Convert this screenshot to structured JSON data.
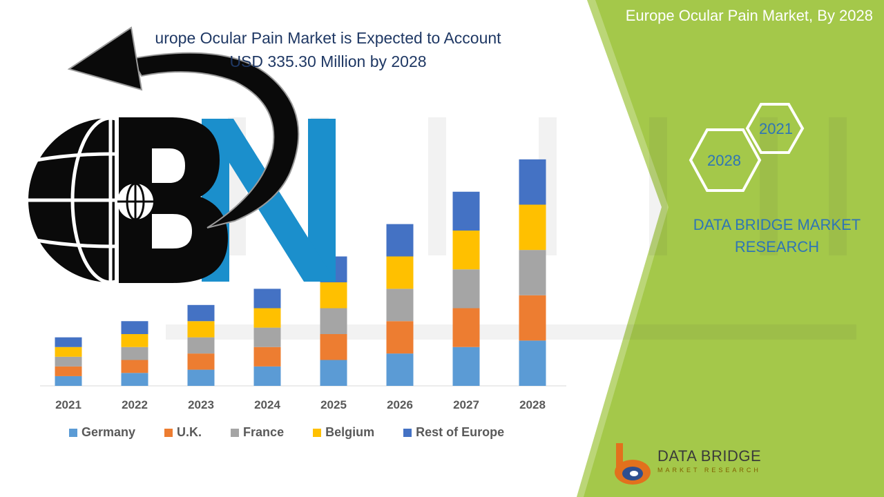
{
  "header": {
    "right_title": "Europe Ocular Pain Market, By 2028",
    "headline_line1": "urope Ocular Pain Market is Expected to Account",
    "headline_line2": "USD 335.30 Million by 2028"
  },
  "brand": {
    "name": "DATA BRIDGE MARKET RESEARCH",
    "hex_labels": [
      "2021",
      "2028"
    ],
    "footer_name": "DATA BRIDGE",
    "footer_sub": "MARKET RESEARCH"
  },
  "colors": {
    "green_panel": "#a4c84a",
    "text_blue": "#2e75b6",
    "headline": "#1f3864"
  },
  "chart_data": {
    "type": "bar",
    "stacked": true,
    "categories": [
      "2021",
      "2022",
      "2023",
      "2024",
      "2025",
      "2026",
      "2027",
      "2028"
    ],
    "series": [
      {
        "name": "Germany",
        "color": "#5b9bd5",
        "values": [
          3.0,
          4.0,
          5.0,
          6.0,
          8.0,
          10.0,
          12.0,
          14.0
        ]
      },
      {
        "name": "U.K.",
        "color": "#ed7d31",
        "values": [
          3.0,
          4.0,
          5.0,
          6.0,
          8.0,
          10.0,
          12.0,
          14.0
        ]
      },
      {
        "name": "France",
        "color": "#a5a5a5",
        "values": [
          3.0,
          4.0,
          5.0,
          6.0,
          8.0,
          10.0,
          12.0,
          14.0
        ]
      },
      {
        "name": "Belgium",
        "color": "#ffc000",
        "values": [
          3.0,
          4.0,
          5.0,
          6.0,
          8.0,
          10.0,
          12.0,
          14.0
        ]
      },
      {
        "name": "Rest of Europe",
        "color": "#4472c4",
        "values": [
          3.0,
          4.0,
          5.0,
          6.0,
          8.0,
          10.0,
          12.0,
          14.0
        ]
      }
    ],
    "ylim": [
      0,
      80
    ],
    "grid": false,
    "legend_position": "bottom"
  }
}
